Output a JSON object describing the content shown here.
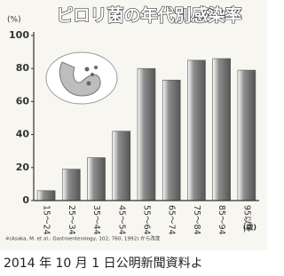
{
  "chart_data": {
    "type": "bar",
    "title": "ピロリ菌の年代別感染率",
    "y_unit": "(%)",
    "x_unit": "(歳)",
    "categories": [
      "15〜24",
      "25〜34",
      "35〜44",
      "45〜54",
      "55〜64",
      "65〜74",
      "75〜84",
      "85〜94",
      "95以上"
    ],
    "values": [
      6,
      19,
      26,
      42,
      80,
      73,
      85,
      86,
      79
    ],
    "color": "#8c8c8c",
    "ylim": [
      0,
      100
    ],
    "yticks": [
      0,
      20,
      40,
      60,
      80,
      100
    ],
    "grid": false,
    "footnote": "※(Asaka, M. et al.: Gastroenterology, 102, 760, 1992) から改変"
  },
  "caption": "2014 年 10 月 1 日公明新聞資料よ"
}
